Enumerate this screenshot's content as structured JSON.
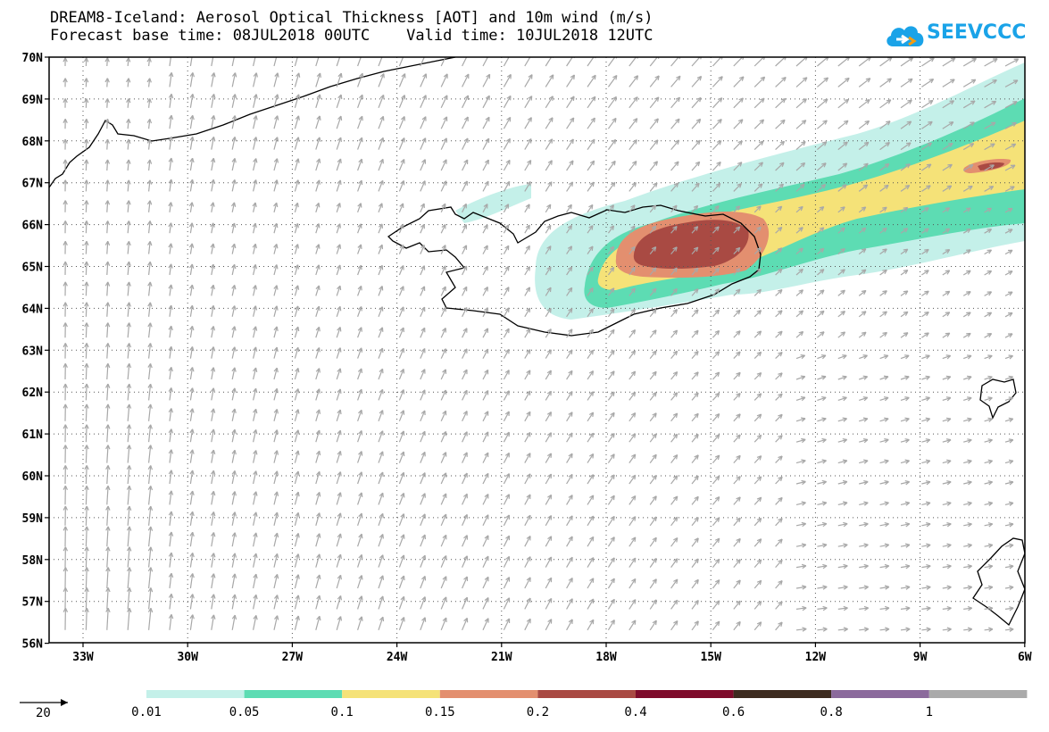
{
  "title": {
    "line1": "DREAM8-Iceland: Aerosol Optical Thickness [AOT] and 10m wind (m/s)",
    "line2": "Forecast base time: 08JUL2018 00UTC    Valid time: 10JUL2018 12UTC"
  },
  "logo": {
    "text": "SEEVCCC",
    "color": "#1aa3e8"
  },
  "axes": {
    "lon_ticks": [
      "33W",
      "30W",
      "27W",
      "24W",
      "21W",
      "18W",
      "15W",
      "12W",
      "9W",
      "6W"
    ],
    "lat_ticks": [
      "70N",
      "69N",
      "68N",
      "67N",
      "66N",
      "65N",
      "64N",
      "63N",
      "62N",
      "61N",
      "60N",
      "59N",
      "58N",
      "57N",
      "56N"
    ]
  },
  "wind_reference": {
    "value": "20"
  },
  "colorbar": {
    "labels": [
      "0.01",
      "0.05",
      "0.1",
      "0.15",
      "0.2",
      "0.4",
      "0.6",
      "0.8",
      "1"
    ],
    "colors": [
      "#c4f0e9",
      "#5ddcb3",
      "#f5e278",
      "#e38f6f",
      "#a94a43",
      "#7e0b2b",
      "#3d2b1f",
      "#8b6a9c",
      "#aaaaaa"
    ]
  }
}
